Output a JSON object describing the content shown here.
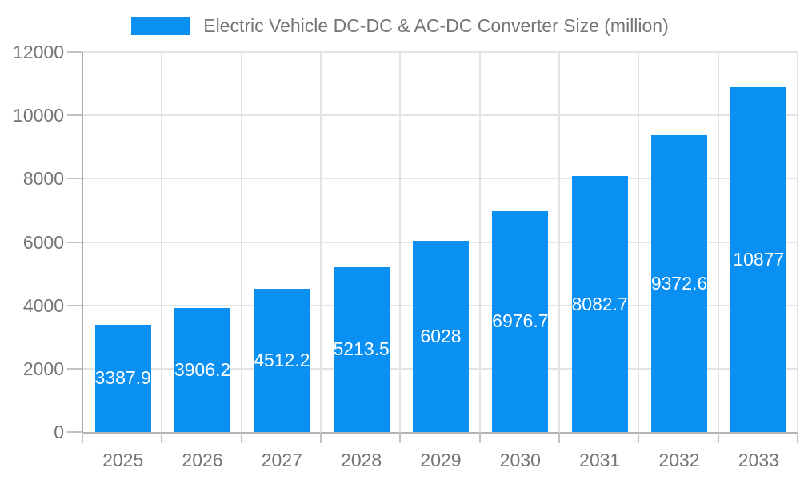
{
  "legend": {
    "label": "Electric Vehicle DC-DC & AC-DC Converter Size (million)"
  },
  "colors": {
    "bar": "#0a8ff2",
    "axis_text": "#757575",
    "value_label_text": "#ffffff",
    "grid_line": "#e3e3e3",
    "axis_line": "#a8a8a8",
    "tick_line": "#c2c2c2",
    "background": "#ffffff"
  },
  "chart_data": {
    "type": "bar",
    "title": "Electric Vehicle DC-DC & AC-DC Converter Size (million)",
    "series_name": "Electric Vehicle DC-DC & AC-DC Converter Size (million)",
    "categories": [
      "2025",
      "2026",
      "2027",
      "2028",
      "2029",
      "2030",
      "2031",
      "2032",
      "2033"
    ],
    "values": [
      3387.9,
      3906.2,
      4512.2,
      5213.5,
      6028,
      6976.7,
      8082.7,
      9372.6,
      10877
    ],
    "value_labels": [
      "3387.9",
      "3906.2",
      "4512.2",
      "5213.5",
      "6028",
      "6976.7",
      "8082.7",
      "9372.6",
      "10877"
    ],
    "xlabel": "",
    "ylabel": "",
    "ylim": [
      0,
      12000
    ],
    "yticks": [
      0,
      2000,
      4000,
      6000,
      8000,
      10000,
      12000
    ],
    "ytick_labels": [
      "0",
      "2000",
      "4000",
      "6000",
      "8000",
      "10000",
      "12000"
    ],
    "grid": true,
    "legend_position": "top",
    "value_labels_position": "inside-center"
  }
}
